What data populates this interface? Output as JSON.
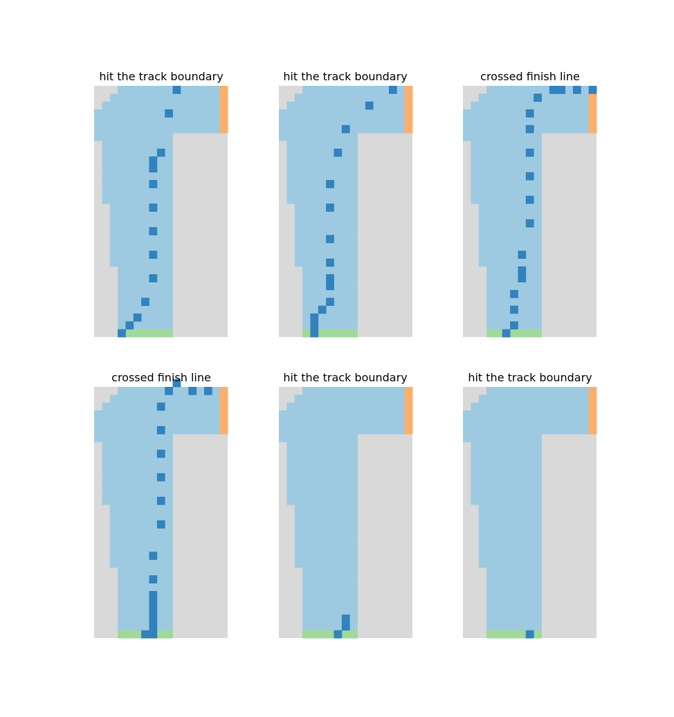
{
  "figure": {
    "colors": {
      "wall": "#d9d9d9",
      "track": "#9ecae1",
      "start": "#a1d99b",
      "finish": "#fdae6b",
      "path": "#3182bd",
      "background": "#ffffff"
    },
    "track_grid": {
      "columns": 17,
      "rows": 32,
      "row_spans": [
        [
          3,
          9
        ],
        [
          3,
          9
        ],
        [
          3,
          9
        ],
        [
          3,
          9
        ],
        [
          3,
          9
        ],
        [
          3,
          9
        ],
        [
          3,
          9
        ],
        [
          3,
          9
        ],
        [
          3,
          9
        ],
        [
          2,
          9
        ],
        [
          2,
          9
        ],
        [
          2,
          9
        ],
        [
          2,
          9
        ],
        [
          2,
          9
        ],
        [
          2,
          9
        ],
        [
          2,
          9
        ],
        [
          2,
          9
        ],
        [
          1,
          9
        ],
        [
          1,
          9
        ],
        [
          1,
          9
        ],
        [
          1,
          9
        ],
        [
          1,
          9
        ],
        [
          1,
          9
        ],
        [
          1,
          9
        ],
        [
          1,
          9
        ],
        [
          0,
          9
        ],
        [
          0,
          16
        ],
        [
          0,
          16
        ],
        [
          0,
          16
        ],
        [
          1,
          16
        ],
        [
          2,
          16
        ],
        [
          3,
          16
        ]
      ],
      "start_line": {
        "row": 0,
        "columns": [
          3,
          9
        ]
      },
      "finish_line": {
        "column": 16,
        "rows": [
          26,
          31
        ]
      }
    }
  },
  "chart_data": [
    {
      "type": "heatmap",
      "title": "hit the track boundary",
      "episode_path": [
        [
          3,
          0
        ],
        [
          4,
          1
        ],
        [
          5,
          2
        ],
        [
          6,
          4
        ],
        [
          7,
          7
        ],
        [
          7,
          10
        ],
        [
          7,
          13
        ],
        [
          7,
          16
        ],
        [
          7,
          19
        ],
        [
          7,
          21
        ],
        [
          7,
          22
        ],
        [
          8,
          23
        ],
        [
          9,
          28
        ],
        [
          10,
          31
        ]
      ]
    },
    {
      "type": "heatmap",
      "title": "hit the track boundary",
      "episode_path": [
        [
          4,
          0
        ],
        [
          4,
          1
        ],
        [
          4,
          2
        ],
        [
          5,
          3
        ],
        [
          6,
          4
        ],
        [
          6,
          6
        ],
        [
          6,
          7
        ],
        [
          6,
          9
        ],
        [
          6,
          12
        ],
        [
          6,
          16
        ],
        [
          6,
          19
        ],
        [
          7,
          23
        ],
        [
          8,
          26
        ],
        [
          11,
          29
        ],
        [
          14,
          31
        ]
      ]
    },
    {
      "type": "heatmap",
      "title": "crossed finish line",
      "episode_path": [
        [
          5,
          0
        ],
        [
          6,
          1
        ],
        [
          6,
          3
        ],
        [
          6,
          5
        ],
        [
          7,
          7
        ],
        [
          7,
          8
        ],
        [
          7,
          10
        ],
        [
          8,
          14
        ],
        [
          8,
          17
        ],
        [
          8,
          20
        ],
        [
          8,
          23
        ],
        [
          8,
          26
        ],
        [
          8,
          28
        ],
        [
          9,
          30
        ],
        [
          11,
          31
        ],
        [
          12,
          31
        ],
        [
          14,
          31
        ],
        [
          16,
          31
        ]
      ]
    },
    {
      "type": "heatmap",
      "title": "crossed finish line",
      "episode_path": [
        [
          6,
          0
        ],
        [
          7,
          0
        ],
        [
          7,
          1
        ],
        [
          7,
          2
        ],
        [
          7,
          3
        ],
        [
          7,
          4
        ],
        [
          7,
          5
        ],
        [
          7,
          7
        ],
        [
          7,
          10
        ],
        [
          8,
          14
        ],
        [
          8,
          17
        ],
        [
          8,
          20
        ],
        [
          8,
          23
        ],
        [
          8,
          26
        ],
        [
          8,
          29
        ],
        [
          9,
          31
        ],
        [
          10,
          32
        ],
        [
          12,
          31
        ],
        [
          14,
          31
        ]
      ]
    },
    {
      "type": "heatmap",
      "title": "hit the track boundary",
      "episode_path": [
        [
          7,
          0
        ],
        [
          8,
          1
        ],
        [
          8,
          2
        ]
      ]
    },
    {
      "type": "heatmap",
      "title": "hit the track boundary",
      "episode_path": [
        [
          8,
          0
        ]
      ]
    }
  ]
}
